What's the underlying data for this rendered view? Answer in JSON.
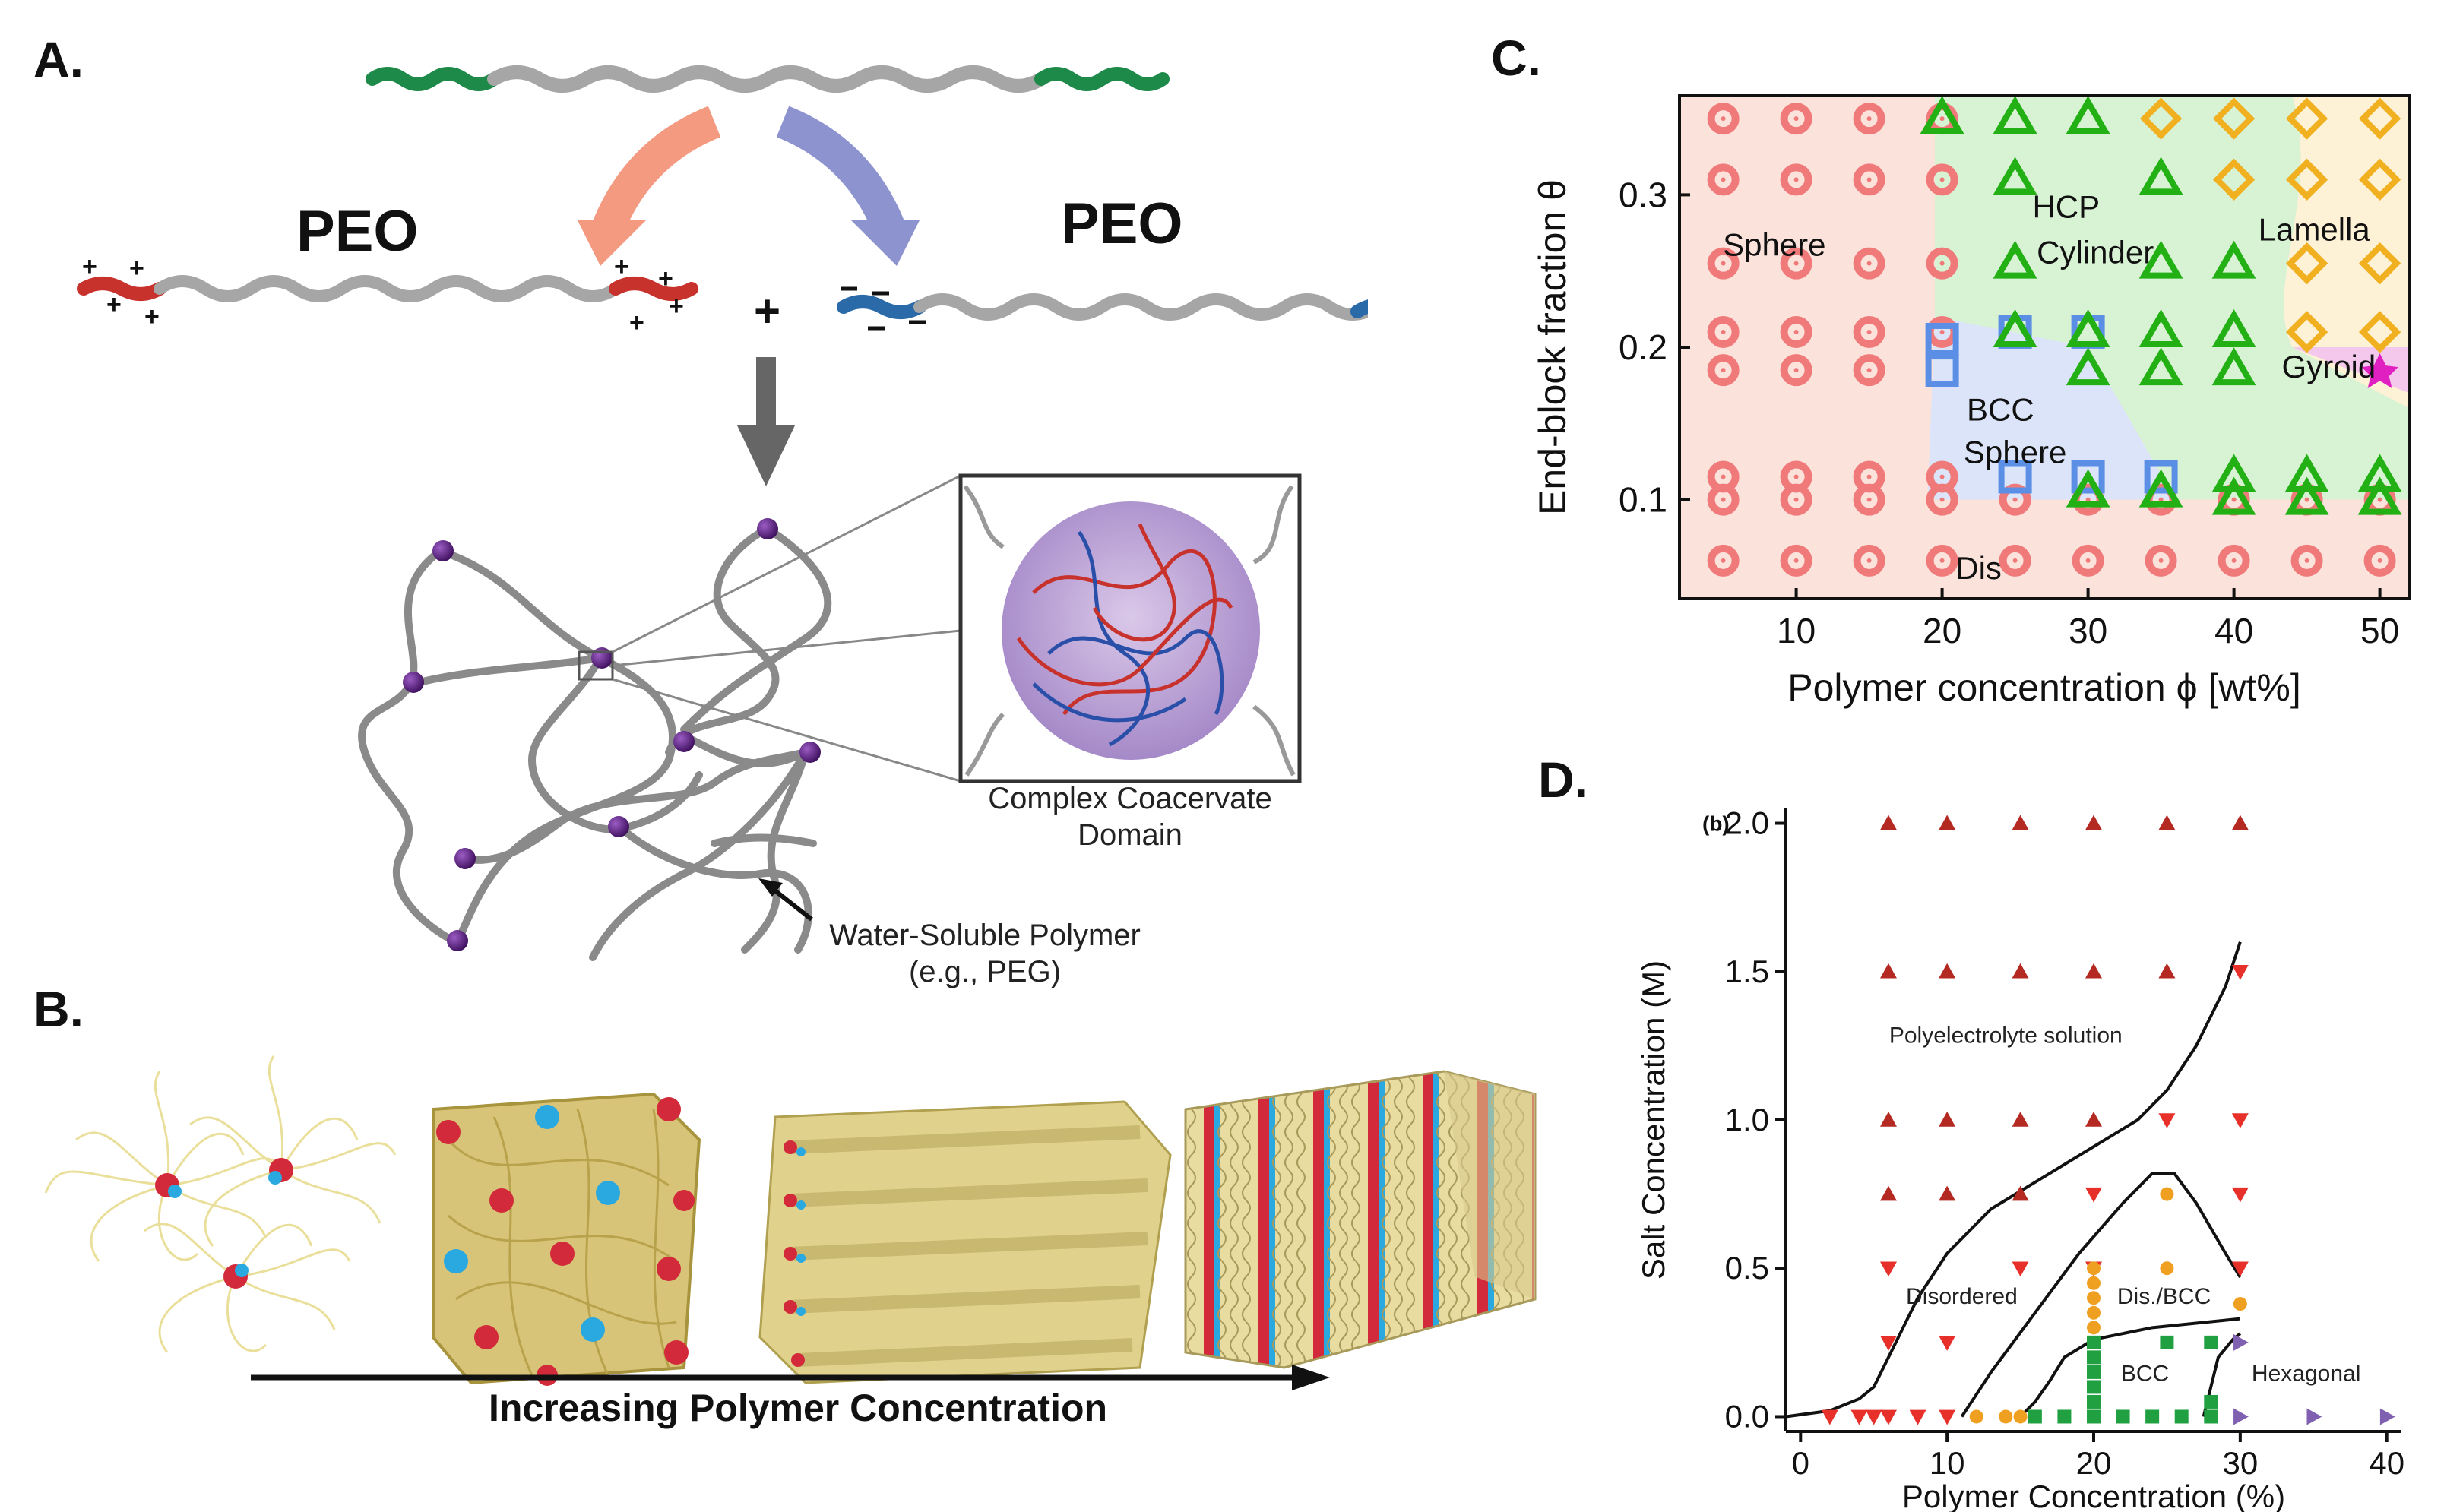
{
  "panel_labels": {
    "a": "A.",
    "b": "B.",
    "c": "C.",
    "d": "D."
  },
  "panel_a": {
    "peo_left": "PEO",
    "peo_right": "PEO",
    "plus": "+",
    "inset_caption_line1": "Complex Coacervate",
    "inset_caption_line2": "Domain",
    "polymer_label_line1": "Water-Soluble Polymer",
    "polymer_label_line2": "(e.g., PEG)",
    "colors": {
      "neutral_block": "#a6a6a6",
      "green_end": "#1e8a4a",
      "cation": "#c8322c",
      "anion": "#2a6aa8",
      "junction": "#5a1f7a",
      "arrow_left": "#f39a80",
      "arrow_right": "#8c93cf"
    }
  },
  "panel_b": {
    "arrow_label": "Increasing Polymer Concentration",
    "stages": [
      "micelles",
      "bcc",
      "cylinders",
      "lamellae"
    ]
  },
  "chart_data": [
    {
      "type": "scatter",
      "panel": "C",
      "xlabel": "Polymer concentration ϕ [wt%]",
      "ylabel": "End-block fraction θ",
      "xlim": [
        2,
        52
      ],
      "ylim": [
        0.035,
        0.365
      ],
      "xticks": [
        10,
        20,
        30,
        40,
        50
      ],
      "yticks": [
        0.1,
        0.2,
        0.3
      ],
      "region_labels": [
        {
          "text": "Sphere",
          "x": 8.5,
          "y": 0.26
        },
        {
          "text": "HCP",
          "x": 28.5,
          "y": 0.285
        },
        {
          "text": "Cylinder",
          "x": 30.5,
          "y": 0.255
        },
        {
          "text": "Lamella",
          "x": 45.5,
          "y": 0.27
        },
        {
          "text": "BCC",
          "x": 24,
          "y": 0.152
        },
        {
          "text": "Sphere",
          "x": 25,
          "y": 0.124
        },
        {
          "text": "Gyroid",
          "x": 46.5,
          "y": 0.18
        },
        {
          "text": "Dis",
          "x": 22.5,
          "y": 0.048
        }
      ],
      "series": [
        {
          "name": "Dis",
          "marker": "circle",
          "color": "#f07a7a",
          "points": [
            [
              5,
              0.35
            ],
            [
              5,
              0.31
            ],
            [
              5,
              0.255
            ],
            [
              5,
              0.21
            ],
            [
              5,
              0.185
            ],
            [
              5,
              0.115
            ],
            [
              5,
              0.1
            ],
            [
              5,
              0.06
            ],
            [
              10,
              0.35
            ],
            [
              10,
              0.31
            ],
            [
              10,
              0.255
            ],
            [
              10,
              0.21
            ],
            [
              10,
              0.185
            ],
            [
              10,
              0.115
            ],
            [
              10,
              0.1
            ],
            [
              10,
              0.06
            ],
            [
              15,
              0.35
            ],
            [
              15,
              0.31
            ],
            [
              15,
              0.255
            ],
            [
              15,
              0.21
            ],
            [
              15,
              0.185
            ],
            [
              15,
              0.115
            ],
            [
              15,
              0.1
            ],
            [
              15,
              0.06
            ],
            [
              20,
              0.35
            ],
            [
              20,
              0.31
            ],
            [
              20,
              0.255
            ],
            [
              20,
              0.21
            ],
            [
              20,
              0.115
            ],
            [
              20,
              0.1
            ],
            [
              20,
              0.06
            ],
            [
              25,
              0.1
            ],
            [
              25,
              0.06
            ],
            [
              30,
              0.1
            ],
            [
              30,
              0.06
            ],
            [
              35,
              0.1
            ],
            [
              35,
              0.06
            ],
            [
              40,
              0.1
            ],
            [
              40,
              0.06
            ],
            [
              45,
              0.1
            ],
            [
              45,
              0.06
            ],
            [
              50,
              0.1
            ],
            [
              50,
              0.06
            ]
          ]
        },
        {
          "name": "BCC",
          "marker": "square",
          "color": "#5b8fe6",
          "points": [
            [
              20,
              0.205
            ],
            [
              20,
              0.185
            ],
            [
              25,
              0.21
            ],
            [
              25,
              0.115
            ],
            [
              30,
              0.21
            ],
            [
              30,
              0.115
            ],
            [
              35,
              0.115
            ]
          ]
        },
        {
          "name": "HCP Cylinder",
          "marker": "triangle",
          "color": "#22b014",
          "points": [
            [
              20,
              0.35
            ],
            [
              25,
              0.35
            ],
            [
              30,
              0.35
            ],
            [
              25,
              0.31
            ],
            [
              35,
              0.31
            ],
            [
              25,
              0.255
            ],
            [
              35,
              0.255
            ],
            [
              40,
              0.255
            ],
            [
              25,
              0.21
            ],
            [
              30,
              0.21
            ],
            [
              35,
              0.21
            ],
            [
              40,
              0.21
            ],
            [
              30,
              0.185
            ],
            [
              35,
              0.185
            ],
            [
              40,
              0.185
            ],
            [
              30,
              0.105
            ],
            [
              35,
              0.105
            ],
            [
              40,
              0.115
            ],
            [
              45,
              0.115
            ],
            [
              50,
              0.115
            ],
            [
              40,
              0.1
            ],
            [
              45,
              0.1
            ],
            [
              50,
              0.1
            ]
          ]
        },
        {
          "name": "Lamella",
          "marker": "diamond",
          "color": "#f0b020",
          "points": [
            [
              35,
              0.35
            ],
            [
              40,
              0.35
            ],
            [
              45,
              0.35
            ],
            [
              50,
              0.35
            ],
            [
              40,
              0.31
            ],
            [
              45,
              0.31
            ],
            [
              50,
              0.31
            ],
            [
              45,
              0.255
            ],
            [
              50,
              0.255
            ],
            [
              45,
              0.21
            ],
            [
              50,
              0.21
            ]
          ]
        },
        {
          "name": "Gyroid",
          "marker": "star",
          "color": "#e020c0",
          "points": [
            [
              50,
              0.185
            ]
          ]
        }
      ]
    },
    {
      "type": "scatter",
      "panel": "D",
      "panel_tag": "(b)",
      "xlabel": "Polymer Concentration (%)",
      "ylabel": "Salt Concentration (M)",
      "xlim": [
        -1,
        41
      ],
      "ylim": [
        -0.05,
        2.05
      ],
      "xticks": [
        0,
        10,
        20,
        30,
        40
      ],
      "yticks": [
        0.0,
        0.5,
        1.0,
        1.5,
        2.0
      ],
      "yticklabels": [
        "0.0",
        "0.5",
        "1.0",
        "1.5",
        "2.0"
      ],
      "region_labels": [
        {
          "text": "Polyelectrolyte solution",
          "x": 14,
          "y": 1.26
        },
        {
          "text": "Disordered",
          "x": 11,
          "y": 0.38
        },
        {
          "text": "Dis./BCC",
          "x": 24.8,
          "y": 0.38
        },
        {
          "text": "BCC",
          "x": 23.5,
          "y": 0.12
        },
        {
          "text": "Hexagonal",
          "x": 34.5,
          "y": 0.12
        }
      ],
      "series": [
        {
          "name": "solution_up",
          "marker": "triangle-up",
          "color": "#b42a22",
          "points": [
            [
              6,
              2.0
            ],
            [
              10,
              2.0
            ],
            [
              15,
              2.0
            ],
            [
              20,
              2.0
            ],
            [
              25,
              2.0
            ],
            [
              30,
              2.0
            ],
            [
              6,
              1.5
            ],
            [
              10,
              1.5
            ],
            [
              15,
              1.5
            ],
            [
              20,
              1.5
            ],
            [
              25,
              1.5
            ],
            [
              6,
              1.0
            ],
            [
              10,
              1.0
            ],
            [
              15,
              1.0
            ],
            [
              20,
              1.0
            ],
            [
              6,
              0.75
            ],
            [
              10,
              0.75
            ],
            [
              15,
              0.75
            ]
          ]
        },
        {
          "name": "disordered_down",
          "marker": "triangle-down",
          "color": "#e8302a",
          "points": [
            [
              30,
              1.5
            ],
            [
              25,
              1.0
            ],
            [
              30,
              1.0
            ],
            [
              30,
              0.75
            ],
            [
              20,
              0.75
            ],
            [
              6,
              0.5
            ],
            [
              15,
              0.5
            ],
            [
              20,
              0.5
            ],
            [
              30,
              0.5
            ],
            [
              6,
              0.25
            ],
            [
              10,
              0.25
            ],
            [
              2,
              0.0
            ],
            [
              4,
              0.0
            ],
            [
              5,
              0.0
            ],
            [
              6,
              0.0
            ],
            [
              8,
              0.0
            ],
            [
              10,
              0.0
            ]
          ]
        },
        {
          "name": "dis_bcc",
          "marker": "circle",
          "color": "#f0a020",
          "points": [
            [
              25,
              0.75
            ],
            [
              25,
              0.5
            ],
            [
              30,
              0.38
            ],
            [
              12,
              0.0
            ],
            [
              14,
              0.0
            ],
            [
              15,
              0.0
            ],
            [
              20,
              0.5
            ],
            [
              20,
              0.45
            ],
            [
              20,
              0.4
            ],
            [
              20,
              0.35
            ],
            [
              20,
              0.3
            ]
          ]
        },
        {
          "name": "bcc",
          "marker": "square",
          "color": "#20a040",
          "points": [
            [
              16,
              0.0
            ],
            [
              18,
              0.0
            ],
            [
              20,
              0.0
            ],
            [
              22,
              0.0
            ],
            [
              24,
              0.0
            ],
            [
              26,
              0.0
            ],
            [
              28,
              0.0
            ],
            [
              20,
              0.25
            ],
            [
              20,
              0.2
            ],
            [
              20,
              0.15
            ],
            [
              20,
              0.1
            ],
            [
              20,
              0.05
            ],
            [
              25,
              0.25
            ],
            [
              28,
              0.25
            ],
            [
              28,
              0.05
            ]
          ]
        },
        {
          "name": "hexagonal",
          "marker": "triangle-right",
          "color": "#8060b0",
          "points": [
            [
              30,
              0.25
            ],
            [
              30,
              0.0
            ],
            [
              35,
              0.0
            ],
            [
              40,
              0.0
            ]
          ]
        }
      ]
    }
  ]
}
